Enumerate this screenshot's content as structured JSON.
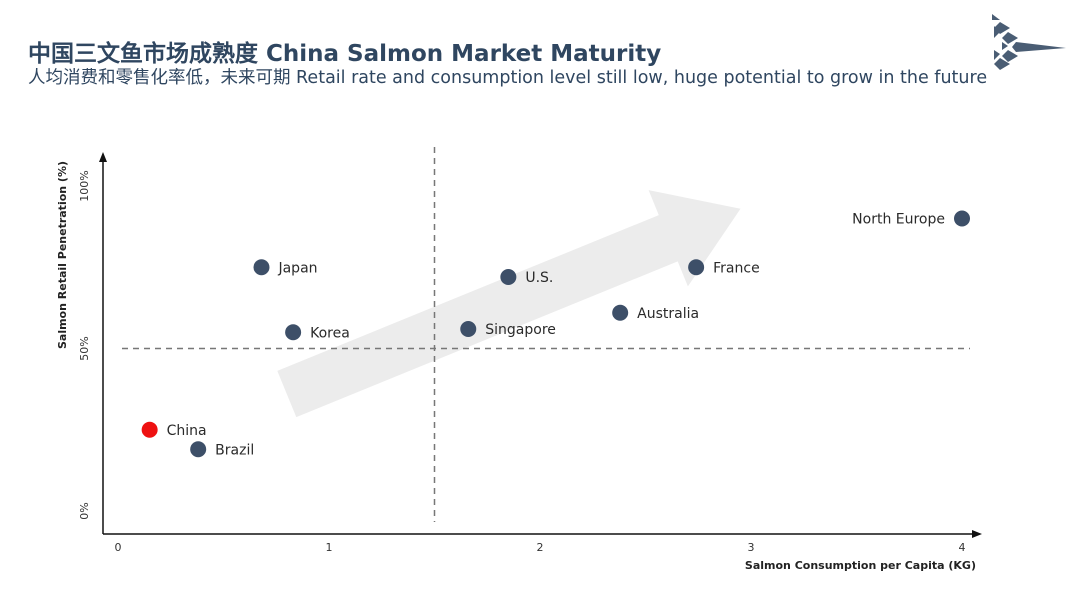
{
  "page": {
    "title": "中国三文鱼市场成熟度 China Salmon Market Maturity",
    "subtitle": "人均消费和零售化率低，未来可期 Retail rate and consumption level still low, huge potential to grow in the future"
  },
  "colors": {
    "title": "#2f4660",
    "point": "#3d4f68",
    "highlight": "#ee1111",
    "arrow": "#ececec",
    "logo": "#4a5d74"
  },
  "logo": {
    "icon": "arrow-chevron-logo-icon"
  },
  "chart_data": {
    "type": "scatter",
    "xlabel": "Salmon Consumption per Capita (KG)",
    "ylabel": "Salmon Retail Penetration (%)",
    "xlim": [
      0,
      4
    ],
    "ylim": [
      0,
      100
    ],
    "xticks": [
      {
        "value": 0,
        "label": "0"
      },
      {
        "value": 1,
        "label": "1"
      },
      {
        "value": 2,
        "label": "2"
      },
      {
        "value": 3,
        "label": "3"
      },
      {
        "value": 4,
        "label": "4"
      }
    ],
    "yticks": [
      {
        "value": 0,
        "label": "0%"
      },
      {
        "value": 50,
        "label": "50%"
      },
      {
        "value": 100,
        "label": "100%"
      }
    ],
    "reference_lines": {
      "x": 1.5,
      "y": 50,
      "style": "dashed"
    },
    "trend_arrow": {
      "from": [
        0.8,
        36
      ],
      "to": [
        2.95,
        93
      ]
    },
    "points": [
      {
        "name": "China",
        "x": 0.15,
        "y": 25,
        "highlight": true
      },
      {
        "name": "Brazil",
        "x": 0.38,
        "y": 19
      },
      {
        "name": "Japan",
        "x": 0.68,
        "y": 75
      },
      {
        "name": "Korea",
        "x": 0.83,
        "y": 55
      },
      {
        "name": "Singapore",
        "x": 1.66,
        "y": 56
      },
      {
        "name": "U.S.",
        "x": 1.85,
        "y": 72
      },
      {
        "name": "Australia",
        "x": 2.38,
        "y": 61
      },
      {
        "name": "France",
        "x": 2.74,
        "y": 75
      },
      {
        "name": "North Europe",
        "x": 4.0,
        "y": 90,
        "label_side": "left"
      }
    ]
  }
}
